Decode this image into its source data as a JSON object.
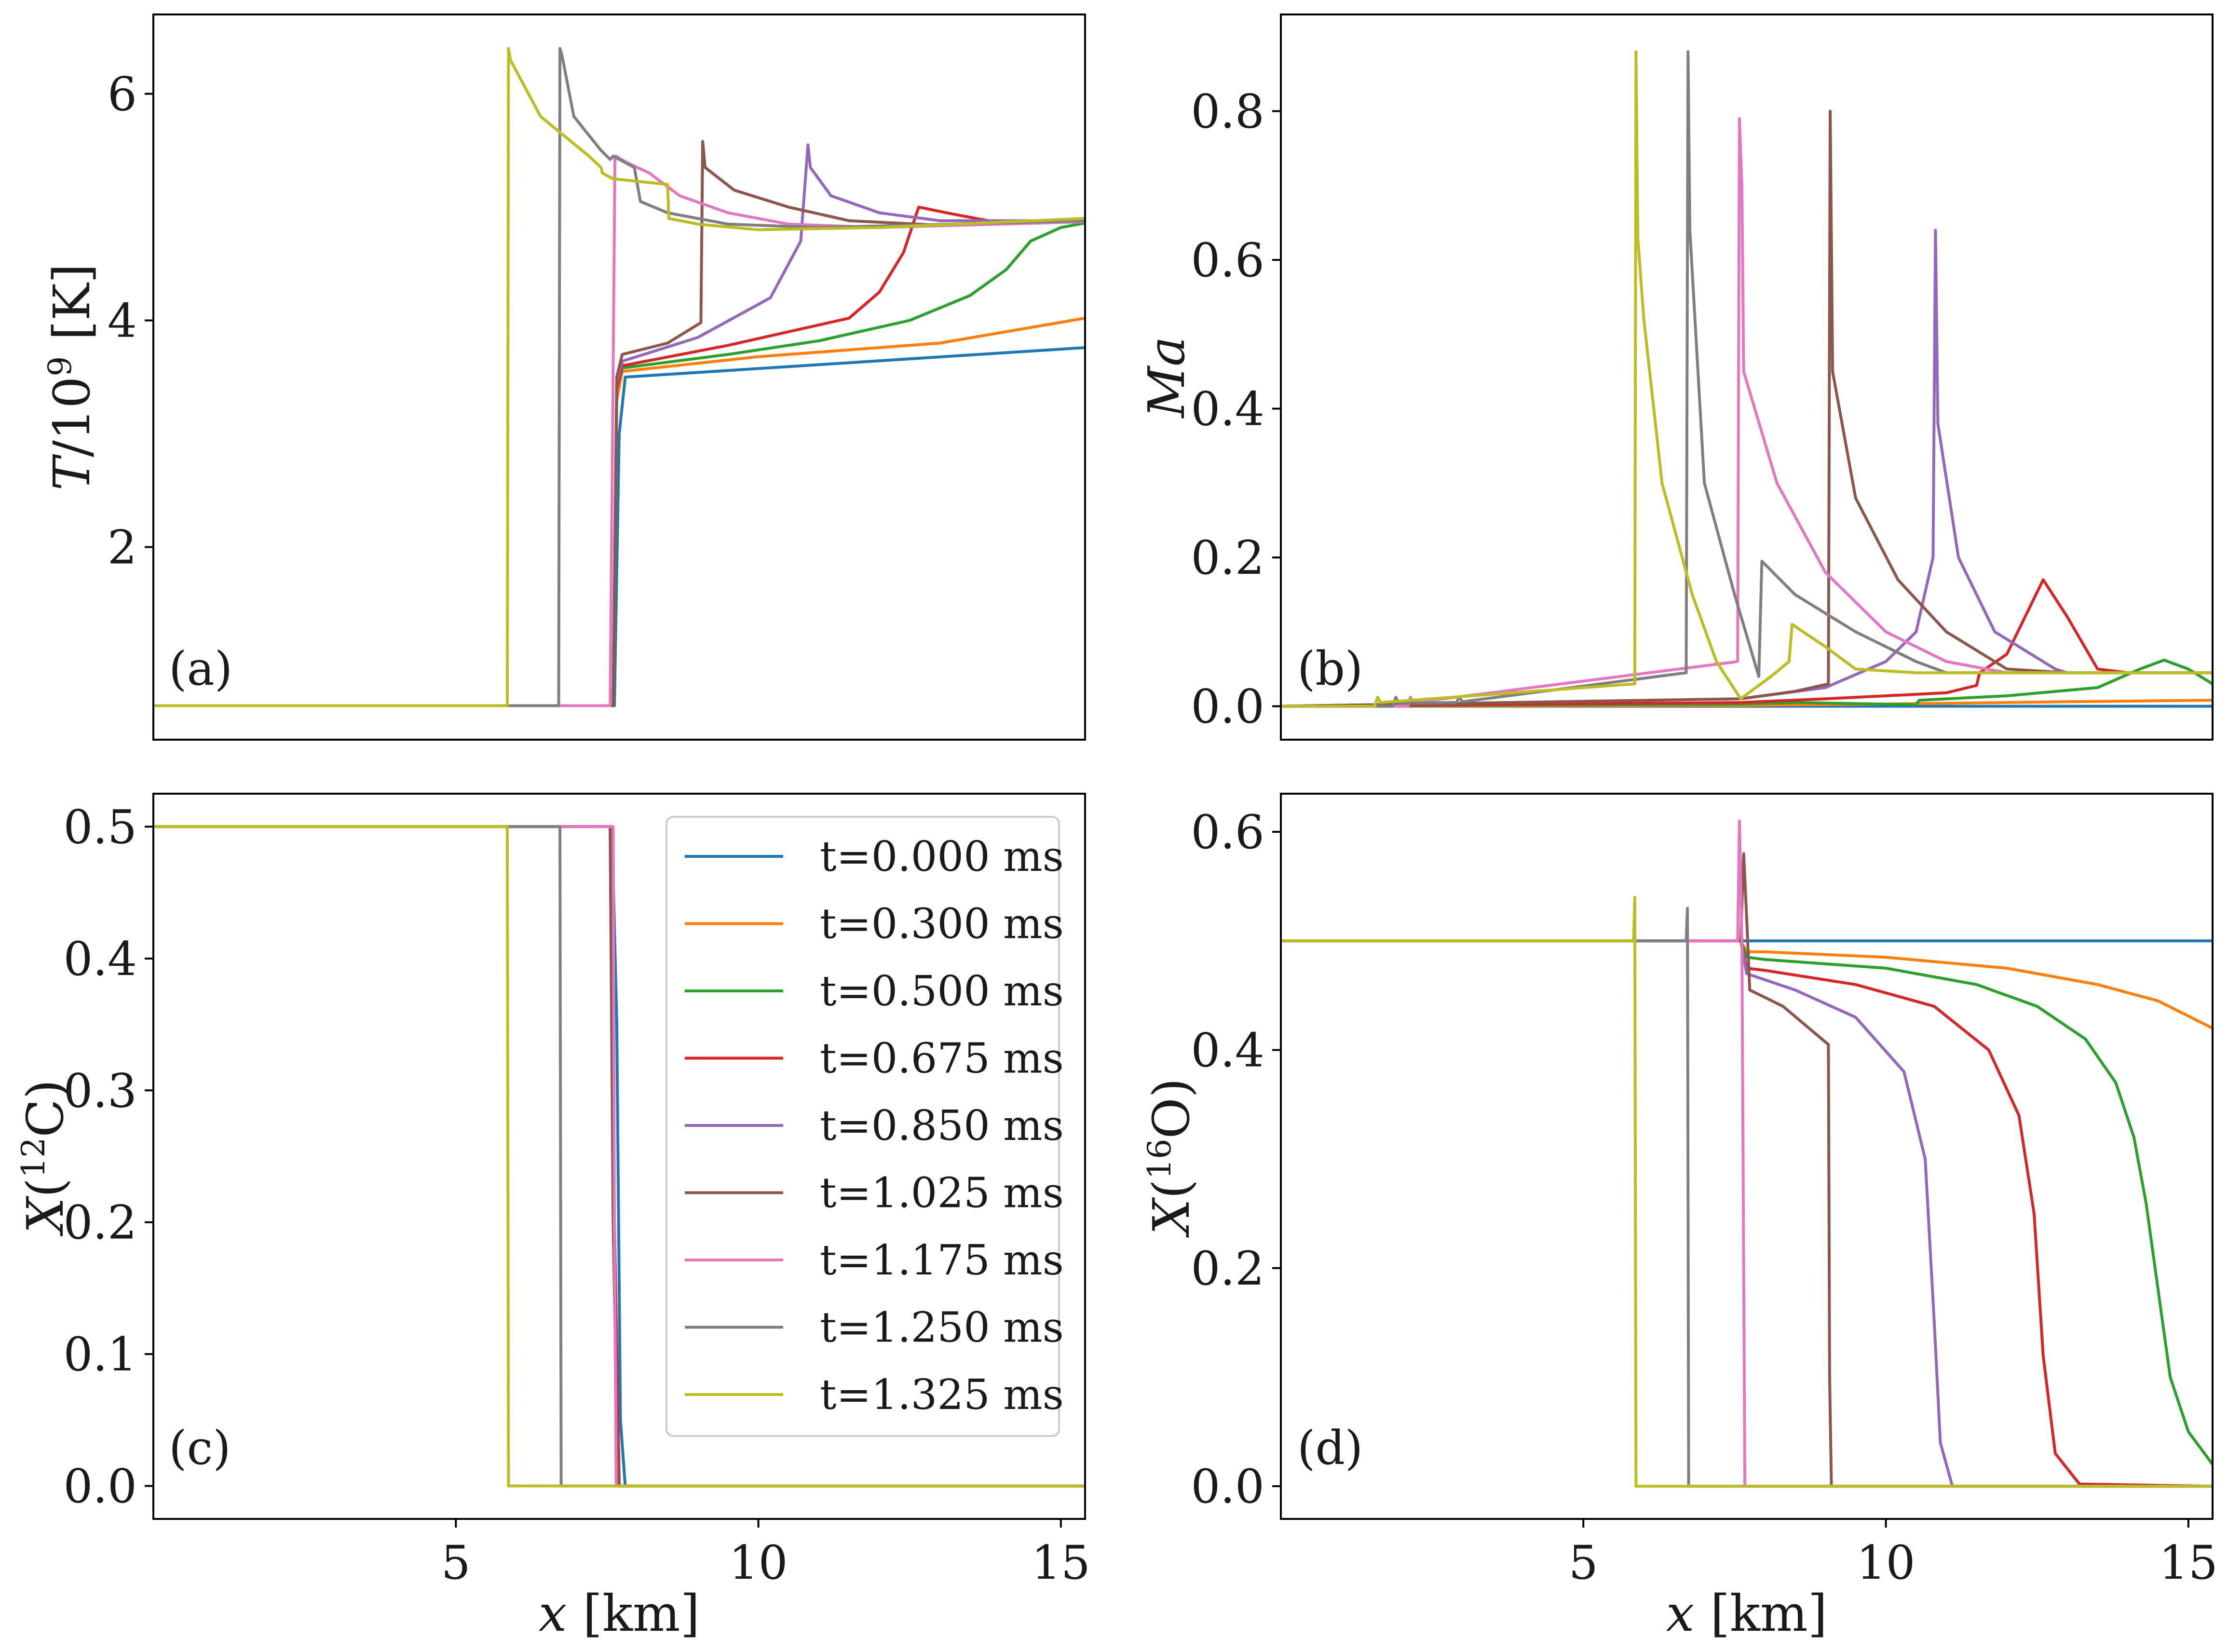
{
  "legend": [
    {
      "label": "t=0.000 ms",
      "color": "#1f77b4"
    },
    {
      "label": "t=0.300 ms",
      "color": "#ff7f0e"
    },
    {
      "label": "t=0.500 ms",
      "color": "#2ca02c"
    },
    {
      "label": "t=0.675 ms",
      "color": "#d62728"
    },
    {
      "label": "t=0.850 ms",
      "color": "#9467bd"
    },
    {
      "label": "t=1.025 ms",
      "color": "#8c564b"
    },
    {
      "label": "t=1.175 ms",
      "color": "#e377c2"
    },
    {
      "label": "t=1.250 ms",
      "color": "#7f7f7f"
    },
    {
      "label": "t=1.325 ms",
      "color": "#bcbd22"
    }
  ],
  "chart_data": [
    {
      "type": "line",
      "panel": "(a)",
      "xlabel": "",
      "ylabel": "T/10⁹ [K]",
      "xlim": [
        0.0,
        15.4
      ],
      "ylim": [
        0.3,
        6.7
      ],
      "xticks": [],
      "yticks": [
        2,
        4,
        6
      ],
      "ytick_labels": [
        "2",
        "4",
        "6"
      ],
      "series": [
        {
          "name": "t=0.000 ms",
          "x": [
            0,
            7.62,
            7.7,
            7.8,
            15.4
          ],
          "y": [
            0.6,
            0.6,
            3.0,
            3.5,
            3.76
          ]
        },
        {
          "name": "t=0.300 ms",
          "x": [
            0,
            7.6,
            7.66,
            7.75,
            10,
            13,
            15.4
          ],
          "y": [
            0.6,
            0.6,
            3.3,
            3.55,
            3.68,
            3.8,
            4.02
          ]
        },
        {
          "name": "t=0.500 ms",
          "x": [
            0,
            7.6,
            7.66,
            7.75,
            9.5,
            11,
            12.5,
            13.5,
            14.1,
            14.5,
            15.0,
            15.4
          ],
          "y": [
            0.6,
            0.6,
            3.4,
            3.58,
            3.7,
            3.82,
            4.0,
            4.22,
            4.45,
            4.7,
            4.82,
            4.86
          ]
        },
        {
          "name": "t=0.675 ms",
          "x": [
            0,
            7.6,
            7.66,
            7.75,
            9.5,
            11.5,
            12.0,
            12.4,
            12.65,
            13.2,
            14,
            15.4
          ],
          "y": [
            0.6,
            0.6,
            3.4,
            3.6,
            3.78,
            4.02,
            4.25,
            4.6,
            5.0,
            4.94,
            4.86,
            4.88
          ]
        },
        {
          "name": "t=0.850 ms",
          "x": [
            0,
            7.6,
            7.66,
            7.75,
            9,
            10.2,
            10.7,
            10.82,
            10.86,
            11.2,
            12,
            13,
            15.4
          ],
          "y": [
            0.6,
            0.6,
            3.45,
            3.64,
            3.85,
            4.2,
            4.7,
            5.55,
            5.35,
            5.1,
            4.95,
            4.88,
            4.88
          ]
        },
        {
          "name": "t=1.025 ms",
          "x": [
            0,
            7.6,
            7.66,
            7.75,
            8.5,
            9.05,
            9.08,
            9.12,
            9.6,
            10.5,
            11.5,
            13,
            15.4
          ],
          "y": [
            0.6,
            0.6,
            3.5,
            3.7,
            3.8,
            3.98,
            5.58,
            5.35,
            5.15,
            5.0,
            4.88,
            4.84,
            4.88
          ]
        },
        {
          "name": "t=1.175 ms",
          "x": [
            0,
            7.55,
            7.6,
            7.63,
            7.65,
            7.8,
            8.2,
            8.7,
            9.5,
            10.5,
            12,
            15.4
          ],
          "y": [
            0.6,
            0.6,
            3.6,
            5.45,
            5.45,
            5.4,
            5.3,
            5.1,
            4.95,
            4.85,
            4.82,
            4.87
          ]
        },
        {
          "name": "t=1.250 ms",
          "x": [
            0,
            6.7,
            6.72,
            6.75,
            6.95,
            7.4,
            7.55,
            7.6,
            7.95,
            8.05,
            8.5,
            9.5,
            11,
            15.4
          ],
          "y": [
            0.6,
            0.6,
            6.4,
            6.35,
            5.8,
            5.5,
            5.42,
            5.45,
            5.35,
            5.05,
            4.95,
            4.85,
            4.82,
            4.88
          ]
        },
        {
          "name": "t=1.325 ms",
          "x": [
            0,
            5.85,
            5.87,
            5.9,
            6.4,
            7.2,
            7.4,
            7.42,
            7.6,
            8.5,
            8.52,
            9,
            10,
            12,
            15.4
          ],
          "y": [
            0.6,
            0.6,
            6.4,
            6.3,
            5.8,
            5.45,
            5.35,
            5.3,
            5.25,
            5.2,
            4.9,
            4.85,
            4.8,
            4.82,
            4.9
          ]
        }
      ]
    },
    {
      "type": "line",
      "panel": "(b)",
      "xlabel": "",
      "ylabel": "Ma",
      "xlim": [
        0.0,
        15.4
      ],
      "ylim": [
        -0.045,
        0.93
      ],
      "xticks": [],
      "yticks": [
        0.0,
        0.2,
        0.4,
        0.6,
        0.8
      ],
      "ytick_labels": [
        "0.0",
        "0.2",
        "0.4",
        "0.6",
        "0.8"
      ],
      "series": [
        {
          "name": "t=0.000 ms",
          "x": [
            0,
            15.4
          ],
          "y": [
            0.0,
            0.0
          ]
        },
        {
          "name": "t=0.300 ms",
          "x": [
            0,
            7.6,
            10,
            13,
            15.4
          ],
          "y": [
            0.0,
            0.001,
            0.003,
            0.006,
            0.008
          ]
        },
        {
          "name": "t=0.500 ms",
          "x": [
            0,
            7.6,
            8.5,
            10.5,
            10.55,
            12,
            13.5,
            14.2,
            14.6,
            15.0,
            15.4
          ],
          "y": [
            0.0,
            0.003,
            0.005,
            0.002,
            0.008,
            0.014,
            0.025,
            0.05,
            0.062,
            0.05,
            0.03
          ]
        },
        {
          "name": "t=0.675 ms",
          "x": [
            0,
            7.6,
            9,
            11,
            11.5,
            11.55,
            12.0,
            12.3,
            12.6,
            13.0,
            13.5,
            14,
            15.4
          ],
          "y": [
            0.0,
            0.005,
            0.01,
            0.018,
            0.028,
            0.045,
            0.07,
            0.12,
            0.17,
            0.12,
            0.05,
            0.045,
            0.045
          ]
        },
        {
          "name": "t=0.850 ms",
          "x": [
            0,
            7.6,
            9,
            10.0,
            10.5,
            10.78,
            10.82,
            10.86,
            11.2,
            11.8,
            12.8,
            13,
            15.4
          ],
          "y": [
            0.0,
            0.01,
            0.025,
            0.06,
            0.1,
            0.2,
            0.64,
            0.38,
            0.2,
            0.1,
            0.05,
            0.045,
            0.045
          ]
        },
        {
          "name": "t=1.025 ms",
          "x": [
            0,
            7.6,
            8.5,
            9.05,
            9.08,
            9.12,
            9.5,
            10.2,
            11,
            12,
            13,
            15.4
          ],
          "y": [
            0.0,
            0.01,
            0.02,
            0.03,
            0.8,
            0.45,
            0.28,
            0.17,
            0.1,
            0.05,
            0.045,
            0.045
          ]
        },
        {
          "name": "t=1.175 ms",
          "x": [
            0,
            2.1,
            2.14,
            2.2,
            7.55,
            7.58,
            7.62,
            7.65,
            8.2,
            9,
            10,
            11,
            12,
            15.4
          ],
          "y": [
            0.0,
            0.0,
            0.012,
            0.005,
            0.06,
            0.79,
            0.7,
            0.45,
            0.3,
            0.18,
            0.1,
            0.06,
            0.045,
            0.045
          ]
        },
        {
          "name": "t=1.250 ms",
          "x": [
            0,
            1.85,
            1.9,
            1.95,
            2.9,
            2.95,
            3.0,
            6.7,
            6.73,
            6.76,
            7.0,
            7.5,
            7.9,
            7.95,
            8.5,
            9.5,
            10.5,
            11,
            15.4
          ],
          "y": [
            0.0,
            0.0,
            0.012,
            0.004,
            0.005,
            0.012,
            0.006,
            0.045,
            0.88,
            0.64,
            0.3,
            0.15,
            0.04,
            0.195,
            0.15,
            0.1,
            0.06,
            0.045,
            0.045
          ]
        },
        {
          "name": "t=1.325 ms",
          "x": [
            0,
            1.55,
            1.6,
            1.65,
            5.85,
            5.87,
            5.9,
            6.0,
            6.3,
            6.8,
            7.2,
            7.6,
            8.1,
            8.4,
            8.45,
            9.0,
            9.5,
            10.5,
            15.4
          ],
          "y": [
            0.0,
            0.0,
            0.012,
            0.005,
            0.03,
            0.88,
            0.63,
            0.52,
            0.3,
            0.15,
            0.06,
            0.01,
            0.04,
            0.06,
            0.11,
            0.08,
            0.05,
            0.045,
            0.045
          ]
        }
      ]
    },
    {
      "type": "line",
      "panel": "(c)",
      "xlabel": "x [km]",
      "ylabel": "X(¹²C)",
      "xlim": [
        0.0,
        15.4
      ],
      "ylim": [
        -0.025,
        0.525
      ],
      "xticks": [
        5,
        10,
        15
      ],
      "xtick_labels": [
        "5",
        "10",
        "15"
      ],
      "yticks": [
        0.0,
        0.1,
        0.2,
        0.3,
        0.4,
        0.5
      ],
      "ytick_labels": [
        "0.0",
        "0.1",
        "0.2",
        "0.3",
        "0.4",
        "0.5"
      ],
      "series": [
        {
          "name": "t=0.000 ms",
          "x": [
            0,
            7.58,
            7.66,
            7.72,
            7.8,
            15.4
          ],
          "y": [
            0.5,
            0.5,
            0.35,
            0.05,
            0.0,
            0.0
          ]
        },
        {
          "name": "t=0.300 ms",
          "x": [
            0,
            7.56,
            7.62,
            7.7,
            15.4
          ],
          "y": [
            0.5,
            0.5,
            0.2,
            0.0,
            0.0
          ]
        },
        {
          "name": "t=0.500 ms",
          "x": [
            0,
            7.56,
            7.62,
            7.7,
            15.4
          ],
          "y": [
            0.5,
            0.5,
            0.2,
            0.0,
            0.0
          ]
        },
        {
          "name": "t=0.675 ms",
          "x": [
            0,
            7.56,
            7.62,
            7.7,
            15.4
          ],
          "y": [
            0.5,
            0.5,
            0.2,
            0.0,
            0.0
          ]
        },
        {
          "name": "t=0.850 ms",
          "x": [
            0,
            7.55,
            7.6,
            7.68,
            15.4
          ],
          "y": [
            0.5,
            0.5,
            0.2,
            0.0,
            0.0
          ]
        },
        {
          "name": "t=1.025 ms",
          "x": [
            0,
            7.55,
            7.6,
            7.68,
            15.4
          ],
          "y": [
            0.5,
            0.5,
            0.2,
            0.0,
            0.0
          ]
        },
        {
          "name": "t=1.175 ms",
          "x": [
            0,
            7.6,
            7.62,
            7.65,
            15.4
          ],
          "y": [
            0.5,
            0.5,
            0.2,
            0.0,
            0.0
          ]
        },
        {
          "name": "t=1.250 ms",
          "x": [
            0,
            6.72,
            6.74,
            15.4
          ],
          "y": [
            0.5,
            0.5,
            0.0,
            0.0
          ]
        },
        {
          "name": "t=1.325 ms",
          "x": [
            0,
            5.85,
            5.87,
            15.4
          ],
          "y": [
            0.5,
            0.5,
            0.0,
            0.0
          ]
        }
      ]
    },
    {
      "type": "line",
      "panel": "(d)",
      "xlabel": "x [km]",
      "ylabel": "X(¹⁶O)",
      "xlim": [
        0.0,
        15.4
      ],
      "ylim": [
        -0.03,
        0.635
      ],
      "xticks": [
        5,
        10,
        15
      ],
      "xtick_labels": [
        "5",
        "10",
        "15"
      ],
      "yticks": [
        0.0,
        0.2,
        0.4,
        0.6
      ],
      "ytick_labels": [
        "0.0",
        "0.2",
        "0.4",
        "0.6"
      ],
      "series": [
        {
          "name": "t=0.000 ms",
          "x": [
            0,
            15.4
          ],
          "y": [
            0.5,
            0.5
          ]
        },
        {
          "name": "t=0.300 ms",
          "x": [
            0,
            7.6,
            7.7,
            8,
            10,
            12,
            13.5,
            14.5,
            15.4
          ],
          "y": [
            0.5,
            0.5,
            0.49,
            0.49,
            0.485,
            0.475,
            0.46,
            0.445,
            0.42
          ]
        },
        {
          "name": "t=0.500 ms",
          "x": [
            0,
            7.6,
            7.7,
            8,
            10,
            11.5,
            12.5,
            13.3,
            13.8,
            14.1,
            14.3,
            14.5,
            14.7,
            15.0,
            15.4
          ],
          "y": [
            0.5,
            0.5,
            0.485,
            0.483,
            0.475,
            0.46,
            0.44,
            0.41,
            0.37,
            0.32,
            0.26,
            0.18,
            0.1,
            0.05,
            0.02
          ]
        },
        {
          "name": "t=0.675 ms",
          "x": [
            0,
            7.6,
            7.7,
            8,
            9.5,
            10.8,
            11.7,
            12.2,
            12.45,
            12.6,
            12.8,
            13.2,
            15.4
          ],
          "y": [
            0.5,
            0.5,
            0.475,
            0.473,
            0.46,
            0.44,
            0.4,
            0.34,
            0.25,
            0.12,
            0.03,
            0.002,
            0.0
          ]
        },
        {
          "name": "t=0.850 ms",
          "x": [
            0,
            7.6,
            7.7,
            8.5,
            9.5,
            10.3,
            10.65,
            10.8,
            10.9,
            11.1,
            15.4
          ],
          "y": [
            0.5,
            0.5,
            0.47,
            0.455,
            0.43,
            0.38,
            0.3,
            0.15,
            0.04,
            0.0,
            0.0
          ]
        },
        {
          "name": "t=1.025 ms",
          "x": [
            0,
            7.6,
            7.65,
            7.7,
            7.75,
            8.3,
            9.05,
            9.07,
            9.1,
            15.4
          ],
          "y": [
            0.5,
            0.5,
            0.58,
            0.52,
            0.455,
            0.44,
            0.405,
            0.1,
            0.0,
            0.0
          ]
        },
        {
          "name": "t=1.175 ms",
          "x": [
            0,
            7.55,
            7.58,
            7.62,
            7.65,
            7.67,
            15.4
          ],
          "y": [
            0.5,
            0.5,
            0.61,
            0.5,
            0.2,
            0.0,
            0.0
          ]
        },
        {
          "name": "t=1.250 ms",
          "x": [
            0,
            6.7,
            6.72,
            6.74,
            15.4
          ],
          "y": [
            0.5,
            0.5,
            0.53,
            0.0,
            0.0
          ]
        },
        {
          "name": "t=1.325 ms",
          "x": [
            0,
            5.83,
            5.85,
            5.87,
            15.4
          ],
          "y": [
            0.5,
            0.5,
            0.54,
            0.0,
            0.0
          ]
        }
      ]
    }
  ]
}
